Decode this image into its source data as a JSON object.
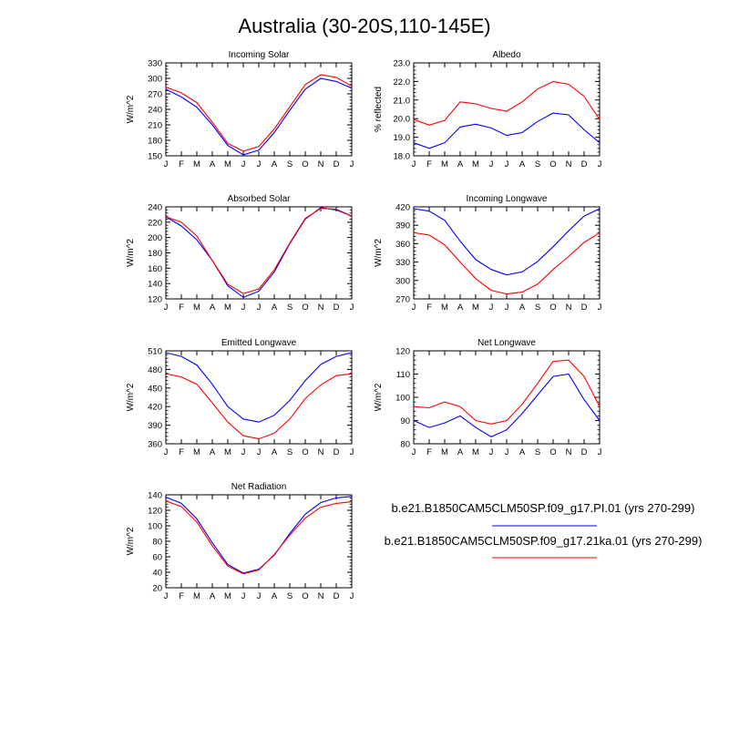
{
  "page": {
    "title": "Australia (30-20S,110-145E)"
  },
  "colors": {
    "series_pi": "#0000ff",
    "series_21ka": "#ff0000"
  },
  "legend": {
    "entries": [
      {
        "label": "b.e21.B1850CAM5CLM50SP.f09_g17.PI.01 (yrs 270-299)",
        "color": "#0000ff"
      },
      {
        "label": "b.e21.B1850CAM5CLM50SP.f09_g17.21ka.01 (yrs 270-299)",
        "color": "#ff0000"
      }
    ]
  },
  "chart_data": [
    {
      "type": "line",
      "title": "Incoming Solar",
      "ylabel": "W/m^2",
      "categories": [
        "J",
        "F",
        "M",
        "A",
        "M",
        "J",
        "J",
        "A",
        "S",
        "O",
        "N",
        "D",
        "J"
      ],
      "ylim": [
        150,
        330
      ],
      "yticks": [
        150,
        180,
        210,
        240,
        270,
        300,
        330
      ],
      "grid": false,
      "series": [
        {
          "name": "b.e21.B1850CAM5CLM50SP.f09_g17.PI.01 (yrs 270-299)",
          "color": "#0000ff",
          "values": [
            279,
            264,
            244,
            210,
            170,
            152,
            161,
            195,
            238,
            279,
            300,
            294,
            281
          ]
        },
        {
          "name": "b.e21.B1850CAM5CLM50SP.f09_g17.21ka.01 (yrs 270-299)",
          "color": "#ff0000",
          "values": [
            283,
            272,
            253,
            215,
            174,
            159,
            168,
            202,
            245,
            288,
            307,
            302,
            285
          ]
        }
      ]
    },
    {
      "type": "line",
      "title": "Albedo",
      "ylabel": "% reflected",
      "categories": [
        "J",
        "F",
        "M",
        "A",
        "M",
        "J",
        "J",
        "A",
        "S",
        "O",
        "N",
        "D",
        "J"
      ],
      "ylim": [
        18.0,
        23.0
      ],
      "yticks": [
        "18.0",
        "19.0",
        "20.0",
        "21.0",
        "22.0",
        "23.0"
      ],
      "grid": false,
      "series": [
        {
          "name": "b.e21.B1850CAM5CLM50SP.f09_g17.PI.01 (yrs 270-299)",
          "color": "#0000ff",
          "values": [
            18.7,
            18.4,
            18.7,
            19.55,
            19.7,
            19.5,
            19.1,
            19.25,
            19.85,
            20.3,
            20.2,
            19.4,
            18.7
          ]
        },
        {
          "name": "b.e21.B1850CAM5CLM50SP.f09_g17.21ka.01 (yrs 270-299)",
          "color": "#ff0000",
          "values": [
            19.95,
            19.65,
            19.9,
            20.9,
            20.8,
            20.55,
            20.4,
            20.9,
            21.6,
            22.0,
            21.85,
            21.2,
            19.95
          ]
        }
      ]
    },
    {
      "type": "line",
      "title": "Absorbed Solar",
      "ylabel": "W/m^2",
      "categories": [
        "J",
        "F",
        "M",
        "A",
        "M",
        "J",
        "J",
        "A",
        "S",
        "O",
        "N",
        "D",
        "J"
      ],
      "ylim": [
        120,
        240
      ],
      "yticks": [
        120,
        140,
        160,
        180,
        200,
        220,
        240
      ],
      "grid": false,
      "series": [
        {
          "name": "b.e21.B1850CAM5CLM50SP.f09_g17.PI.01 (yrs 270-299)",
          "color": "#0000ff",
          "values": [
            227,
            215,
            197,
            170,
            137,
            122,
            130,
            155,
            192,
            224,
            239,
            236,
            228
          ]
        },
        {
          "name": "b.e21.B1850CAM5CLM50SP.f09_g17.21ka.01 (yrs 270-299)",
          "color": "#ff0000",
          "values": [
            227,
            220,
            202,
            170,
            139,
            127,
            133,
            158,
            193,
            225,
            238,
            237,
            228
          ]
        }
      ]
    },
    {
      "type": "line",
      "title": "Incoming Longwave",
      "ylabel": "W/m^2",
      "categories": [
        "J",
        "F",
        "M",
        "A",
        "M",
        "J",
        "J",
        "A",
        "S",
        "O",
        "N",
        "D",
        "J"
      ],
      "ylim": [
        270,
        420
      ],
      "yticks": [
        270,
        300,
        330,
        360,
        390,
        420
      ],
      "grid": false,
      "series": [
        {
          "name": "b.e21.B1850CAM5CLM50SP.f09_g17.PI.01 (yrs 270-299)",
          "color": "#0000ff",
          "values": [
            417,
            413,
            398,
            364,
            334,
            318,
            309,
            314,
            331,
            355,
            381,
            405,
            417
          ]
        },
        {
          "name": "b.e21.B1850CAM5CLM50SP.f09_g17.21ka.01 (yrs 270-299)",
          "color": "#ff0000",
          "values": [
            378,
            374,
            358,
            330,
            303,
            284,
            278,
            281,
            294,
            318,
            339,
            362,
            378
          ]
        }
      ]
    },
    {
      "type": "line",
      "title": "Emitted Longwave",
      "ylabel": "W/m^2",
      "categories": [
        "J",
        "F",
        "M",
        "A",
        "M",
        "J",
        "J",
        "A",
        "S",
        "O",
        "N",
        "D",
        "J"
      ],
      "ylim": [
        360,
        510
      ],
      "yticks": [
        360,
        390,
        420,
        450,
        480,
        510
      ],
      "grid": false,
      "series": [
        {
          "name": "b.e21.B1850CAM5CLM50SP.f09_g17.PI.01 (yrs 270-299)",
          "color": "#0000ff",
          "values": [
            507,
            501,
            487,
            456,
            420,
            400,
            395,
            406,
            430,
            462,
            488,
            501,
            507
          ]
        },
        {
          "name": "b.e21.B1850CAM5CLM50SP.f09_g17.21ka.01 (yrs 270-299)",
          "color": "#ff0000",
          "values": [
            473,
            468,
            456,
            426,
            395,
            373,
            368,
            377,
            400,
            433,
            455,
            470,
            473
          ]
        }
      ]
    },
    {
      "type": "line",
      "title": "Net Longwave",
      "ylabel": "W/m^2",
      "categories": [
        "J",
        "F",
        "M",
        "A",
        "M",
        "J",
        "J",
        "A",
        "S",
        "O",
        "N",
        "D",
        "J"
      ],
      "ylim": [
        80,
        120
      ],
      "yticks": [
        80,
        90,
        100,
        110,
        120
      ],
      "grid": false,
      "series": [
        {
          "name": "b.e21.B1850CAM5CLM50SP.f09_g17.PI.01 (yrs 270-299)",
          "color": "#0000ff",
          "values": [
            90,
            87,
            89,
            92,
            87,
            83,
            86,
            93,
            101,
            109,
            110,
            99,
            90
          ]
        },
        {
          "name": "b.e21.B1850CAM5CLM50SP.f09_g17.21ka.01 (yrs 270-299)",
          "color": "#ff0000",
          "values": [
            96,
            95.5,
            98,
            96,
            90,
            88.5,
            90,
            97,
            106,
            115.5,
            116,
            109,
            96
          ]
        }
      ]
    },
    {
      "type": "line",
      "title": "Net Radiation",
      "ylabel": "W/m^2",
      "categories": [
        "J",
        "F",
        "M",
        "A",
        "M",
        "J",
        "J",
        "A",
        "S",
        "O",
        "N",
        "D",
        "J"
      ],
      "ylim": [
        20,
        140
      ],
      "yticks": [
        20,
        40,
        60,
        80,
        100,
        120,
        140
      ],
      "grid": false,
      "series": [
        {
          "name": "b.e21.B1850CAM5CLM50SP.f09_g17.PI.01 (yrs 270-299)",
          "color": "#0000ff",
          "values": [
            137,
            129,
            109,
            78,
            50,
            39,
            44,
            62,
            90,
            115,
            130,
            136,
            138
          ]
        },
        {
          "name": "b.e21.B1850CAM5CLM50SP.f09_g17.21ka.01 (yrs 270-299)",
          "color": "#ff0000",
          "values": [
            132,
            125,
            105,
            74,
            48,
            38,
            43,
            63,
            88,
            110,
            124,
            129,
            131
          ]
        }
      ]
    }
  ]
}
